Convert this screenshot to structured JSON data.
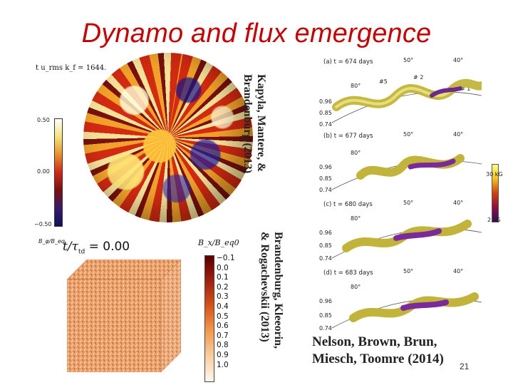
{
  "slide": {
    "title": "Dynamo and flux emergence",
    "page_number": "21",
    "title_color": "#c00000"
  },
  "sphere_figure": {
    "caption": "t u_rms k_f = 1644.",
    "colorbar_ticks": [
      "0.50",
      "0.00",
      "−0.50"
    ],
    "colorbar_label": "B_φ/B_eq",
    "credit_line1": "Kapyla, Mantere, &",
    "credit_line2": "Brandenburg (2013)"
  },
  "cube_figure": {
    "time_label_symbol": "t/τ",
    "time_label_sub": "td",
    "time_value": "= 0.00",
    "colorbar_title": "B_x/B_eq0",
    "colorbar_ticks": [
      "−0.1",
      "0.0",
      "0.1",
      "0.2",
      "0.3",
      "0.4",
      "0.5",
      "0.6",
      "0.7",
      "0.8",
      "0.9",
      "1.0"
    ],
    "credit_line1": "Brandenburg, Kleeorin,",
    "credit_line2": "& Rogachevskii (2013)"
  },
  "wedge_figure": {
    "panels": [
      {
        "label": "(a)   t = 674 days",
        "lat_left": "50°",
        "lat_right": "40°",
        "r_values": [
          "0.96",
          "0.85",
          "0.74"
        ],
        "tags": [
          "80°",
          "#5",
          "# 2",
          "# 1"
        ]
      },
      {
        "label": "(b)   t = 677 days",
        "lat_left": "50°",
        "lat_right": "40°",
        "r_values": [
          "0.96",
          "0.85",
          "0.74"
        ],
        "tags": [
          "80°"
        ]
      },
      {
        "label": "(c)   t = 680 days",
        "lat_left": "50°",
        "lat_right": "40°",
        "r_values": [
          "0.96",
          "0.85",
          "0.74"
        ],
        "tags": [
          "80°"
        ]
      },
      {
        "label": "(d)   t = 683 days",
        "lat_left": "50°",
        "lat_right": "40°",
        "r_values": [
          "0.96",
          "0.85",
          "0.74"
        ],
        "tags": [
          "80°"
        ]
      }
    ],
    "colorbar_top": "30 kG",
    "colorbar_bottom": "2 kG",
    "credit_line1": "Nelson, Brown, Brun,",
    "credit_line2": "Miesch, Toomre (2014)"
  }
}
